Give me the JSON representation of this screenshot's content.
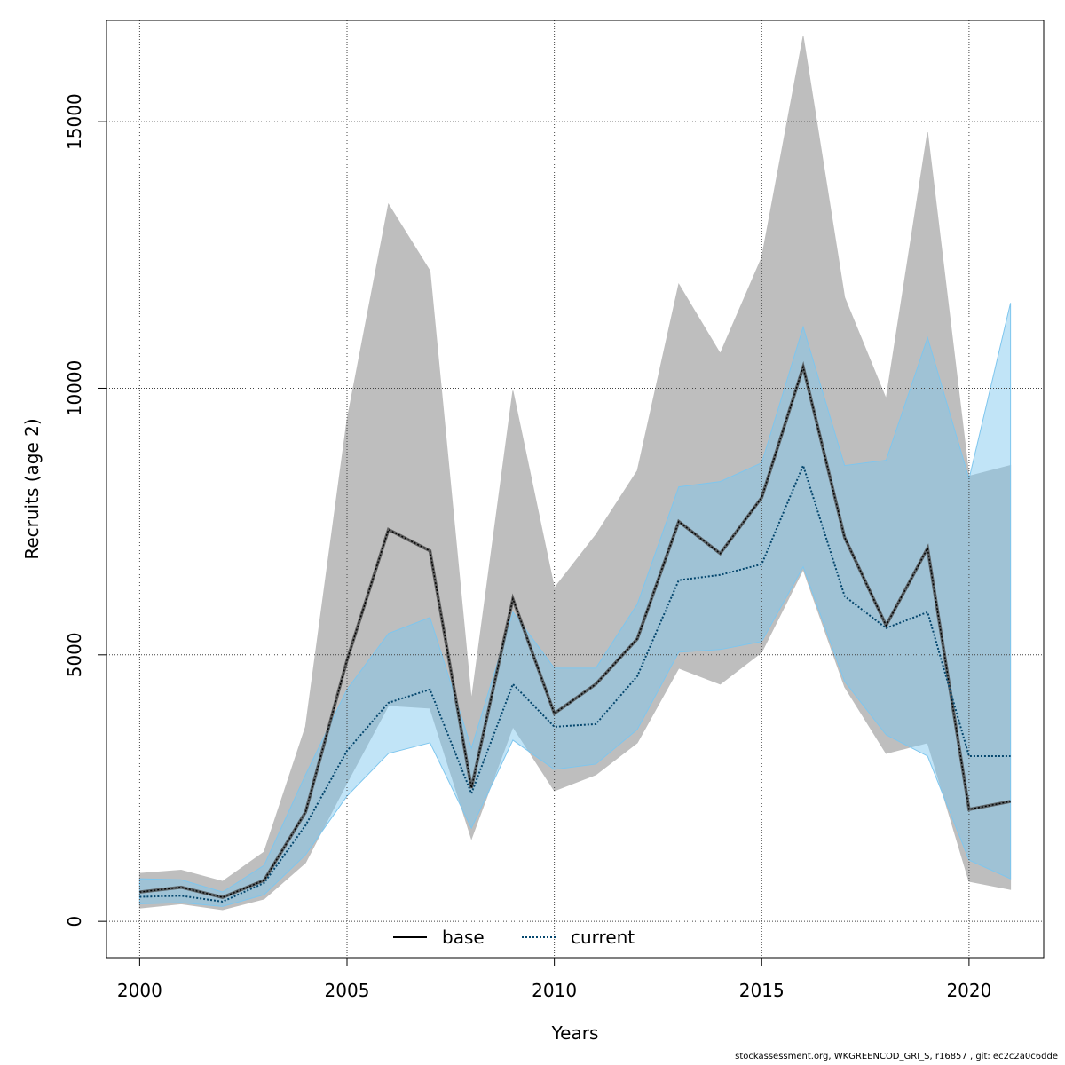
{
  "chart_data": {
    "type": "line",
    "title": "",
    "xlabel": "Years",
    "ylabel": "Recruits (age 2)",
    "xlim": [
      1999.2,
      2021.8
    ],
    "ylim": [
      -680,
      16900
    ],
    "x_ticks": [
      2000,
      2005,
      2010,
      2015,
      2020
    ],
    "y_ticks": [
      0,
      5000,
      10000,
      15000
    ],
    "grid": true,
    "legend_position": "bottom",
    "x": [
      2000,
      2001,
      2002,
      2003,
      2004,
      2005,
      2006,
      2007,
      2008,
      2009,
      2010,
      2011,
      2012,
      2013,
      2014,
      2015,
      2016,
      2017,
      2018,
      2019,
      2020,
      2021
    ],
    "series": [
      {
        "name": "base",
        "line_style": "solid",
        "line_color": "#000000",
        "band_color": "#bebebe",
        "values": [
          550,
          640,
          450,
          770,
          2050,
          4900,
          7350,
          6950,
          2500,
          6050,
          3900,
          4450,
          5300,
          7500,
          6900,
          7950,
          10400,
          7200,
          5550,
          7000,
          2100,
          2250
        ],
        "lower": [
          250,
          330,
          220,
          420,
          1100,
          2600,
          4050,
          4000,
          1550,
          3650,
          2450,
          2750,
          3350,
          4750,
          4450,
          5050,
          6600,
          4400,
          3150,
          3350,
          750,
          600
        ],
        "upper": [
          900,
          960,
          750,
          1300,
          3650,
          9400,
          13450,
          12200,
          4150,
          9950,
          6250,
          7250,
          8450,
          11950,
          10650,
          12450,
          16600,
          11700,
          9800,
          14800,
          8350,
          8550
        ]
      },
      {
        "name": "current",
        "line_style": "dotted",
        "line_color": "#05476e",
        "band_color": "#7ec6ee",
        "values": [
          460,
          480,
          370,
          720,
          1800,
          3200,
          4100,
          4350,
          2400,
          4450,
          3650,
          3700,
          4600,
          6400,
          6500,
          6700,
          8550,
          6100,
          5500,
          5800,
          3100,
          3100
        ],
        "lower": [
          330,
          350,
          280,
          500,
          1250,
          2350,
          3150,
          3350,
          1750,
          3400,
          2850,
          2950,
          3600,
          5050,
          5100,
          5250,
          6650,
          4500,
          3500,
          3100,
          1150,
          800
        ],
        "upper": [
          800,
          780,
          550,
          1050,
          2750,
          4350,
          5400,
          5700,
          3250,
          5800,
          4750,
          4750,
          5950,
          8150,
          8250,
          8600,
          11150,
          8550,
          8650,
          10950,
          8300,
          11600
        ]
      }
    ]
  },
  "footer_text": "stockassessment.org, WKGREENCOD_GRI_S, r16857 , git: ec2c2a0c6dde"
}
